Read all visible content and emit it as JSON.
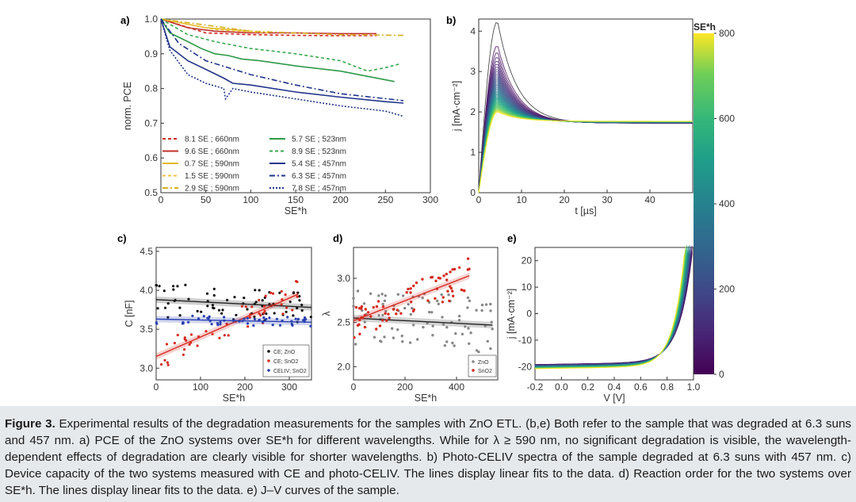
{
  "figure": {
    "caption_label": "Figure 3.",
    "caption_text": "Experimental results of the degradation measurements for the samples with ZnO ETL. (b,e) Both refer to the sample that was degraded at 6.3 suns and 457 nm. a) PCE of the ZnO systems over SE*h for different wavelengths. While for λ ≥ 590 nm, no significant degradation is visible, the wavelength-dependent effects of degradation are clearly visible for shorter wavelengths. b) Photo-CELIV spectra of the sample degraded at 6.3 suns with 457 nm. c) Device capacity of the two systems measured with CE and photo-CELIV. The lines display linear fits to the data. d) Reaction order for the two systems over SE*h. The lines display linear fits to the data. e) J–V curves of the sample."
  },
  "chart_data": [
    {
      "panel": "a)",
      "type": "line",
      "xlabel": "SE*h",
      "ylabel": "norm. PCE",
      "xlim": [
        0,
        300
      ],
      "ylim": [
        0.5,
        1.0
      ],
      "xticks": [
        0,
        50,
        100,
        150,
        200,
        250,
        300
      ],
      "yticks": [
        0.5,
        0.6,
        0.7,
        0.8,
        0.9,
        1.0
      ],
      "series": [
        {
          "name": "8.1 SE ; 660nm",
          "color": "#d02a20",
          "dash": "dash",
          "x": [
            0,
            50,
            100,
            150,
            200,
            240
          ],
          "y": [
            1.0,
            0.96,
            0.955,
            0.953,
            0.952,
            0.952
          ]
        },
        {
          "name": "9.6 SE ; 660nm",
          "color": "#c0302a",
          "dash": "solid",
          "x": [
            0,
            30,
            60,
            100,
            150,
            200,
            240
          ],
          "y": [
            1.0,
            0.975,
            0.965,
            0.96,
            0.96,
            0.958,
            0.958
          ]
        },
        {
          "name": "0.7 SE ; 590nm",
          "color": "#e0b820",
          "dash": "solid",
          "x": [
            0,
            50,
            100
          ],
          "y": [
            1.0,
            0.975,
            0.965
          ]
        },
        {
          "name": "1.5 SE ; 590nm",
          "color": "#f0c040",
          "dash": "dash",
          "x": [
            0,
            60,
            120
          ],
          "y": [
            1.0,
            0.97,
            0.96
          ]
        },
        {
          "name": "2.9 SE ; 590nm",
          "color": "#d4b020",
          "dash": "dashdot",
          "x": [
            0,
            100,
            200,
            270
          ],
          "y": [
            1.0,
            0.965,
            0.955,
            0.953
          ]
        },
        {
          "name": "5.7 SE ; 523nm",
          "color": "#2e9a48",
          "dash": "solid",
          "x": [
            0,
            10,
            30,
            45,
            60,
            75,
            90,
            110,
            150,
            200,
            260
          ],
          "y": [
            1.0,
            0.96,
            0.935,
            0.915,
            0.9,
            0.895,
            0.885,
            0.88,
            0.865,
            0.85,
            0.82
          ]
        },
        {
          "name": "8.9 SE ; 523nm",
          "color": "#3aa850",
          "dash": "dash",
          "x": [
            0,
            30,
            60,
            100,
            150,
            200,
            230,
            250,
            265
          ],
          "y": [
            1.0,
            0.955,
            0.935,
            0.915,
            0.9,
            0.88,
            0.85,
            0.86,
            0.87
          ]
        },
        {
          "name": "5.4 SE ; 457nm",
          "color": "#22348a",
          "dash": "solid",
          "x": [
            0,
            10,
            30,
            50,
            70,
            80,
            100,
            150,
            200,
            250,
            270
          ],
          "y": [
            1.0,
            0.92,
            0.88,
            0.855,
            0.83,
            0.815,
            0.81,
            0.79,
            0.775,
            0.762,
            0.758
          ]
        },
        {
          "name": "6.3 SE ; 457nm",
          "color": "#22348a",
          "dash": "dashdot",
          "x": [
            0,
            20,
            50,
            100,
            150,
            200,
            270
          ],
          "y": [
            1.0,
            0.93,
            0.88,
            0.84,
            0.81,
            0.785,
            0.765
          ]
        },
        {
          "name": "7.8 SE ; 457nm",
          "color": "#22348a",
          "dash": "dot",
          "x": [
            0,
            10,
            30,
            50,
            70,
            72,
            80,
            100,
            150,
            200,
            250,
            270
          ],
          "y": [
            1.0,
            0.91,
            0.84,
            0.815,
            0.8,
            0.77,
            0.8,
            0.79,
            0.77,
            0.75,
            0.735,
            0.72
          ]
        }
      ]
    },
    {
      "panel": "b)",
      "type": "line",
      "xlabel": "t [µs]",
      "ylabel": "j [mA·cm⁻²]",
      "xlim": [
        0,
        50
      ],
      "ylim": [
        0,
        4.3
      ],
      "xticks": [
        0,
        10,
        20,
        30,
        40
      ],
      "yticks": [
        0,
        1,
        2,
        3,
        4
      ],
      "peak_range": [
        2.0,
        4.25
      ],
      "colorbar": {
        "label": "SE*h",
        "min": 0,
        "max": 800,
        "ticks": [
          0,
          200,
          400,
          600,
          800
        ]
      }
    },
    {
      "panel": "c)",
      "type": "scatter",
      "xlabel": "SE*h",
      "ylabel": "C [nF]",
      "xlim": [
        0,
        350
      ],
      "ylim": [
        2.85,
        4.55
      ],
      "xticks": [
        0,
        100,
        200,
        300
      ],
      "yticks": [
        3.0,
        3.5,
        4.0,
        4.5
      ],
      "legend": [
        "CE; ZnO",
        "CE; SnO2",
        "CELIV; SnO2"
      ],
      "fits": [
        {
          "name": "CE; ZnO",
          "color": "#222222",
          "x": [
            0,
            350
          ],
          "y": [
            3.88,
            3.78
          ]
        },
        {
          "name": "CE; SnO2",
          "color": "#d62a20",
          "x": [
            0,
            320
          ],
          "y": [
            3.15,
            3.95
          ]
        },
        {
          "name": "CELIV; SnO2",
          "color": "#2a40b0",
          "x": [
            0,
            350
          ],
          "y": [
            3.63,
            3.59
          ]
        }
      ]
    },
    {
      "panel": "d)",
      "type": "scatter",
      "xlabel": "SE*h",
      "ylabel": "λ",
      "xlim": [
        0,
        560
      ],
      "ylim": [
        1.85,
        3.35
      ],
      "xticks": [
        0,
        200,
        400
      ],
      "yticks": [
        2.0,
        2.5,
        3.0
      ],
      "legend": [
        "ZnO",
        "SnO2"
      ],
      "fits": [
        {
          "name": "ZnO",
          "color": "#222222",
          "x": [
            0,
            540
          ],
          "y": [
            2.55,
            2.47
          ]
        },
        {
          "name": "SnO2",
          "color": "#d62a20",
          "x": [
            0,
            450
          ],
          "y": [
            2.52,
            3.03
          ]
        }
      ]
    },
    {
      "panel": "e)",
      "type": "line",
      "xlabel": "V [V]",
      "ylabel": "j [mA·cm⁻²]",
      "xlim": [
        -0.2,
        1.0
      ],
      "ylim": [
        -25,
        25
      ],
      "xticks": [
        -0.2,
        0.0,
        0.2,
        0.4,
        0.6,
        0.8,
        1.0
      ],
      "yticks": [
        -20,
        -10,
        0,
        10,
        20
      ]
    }
  ]
}
